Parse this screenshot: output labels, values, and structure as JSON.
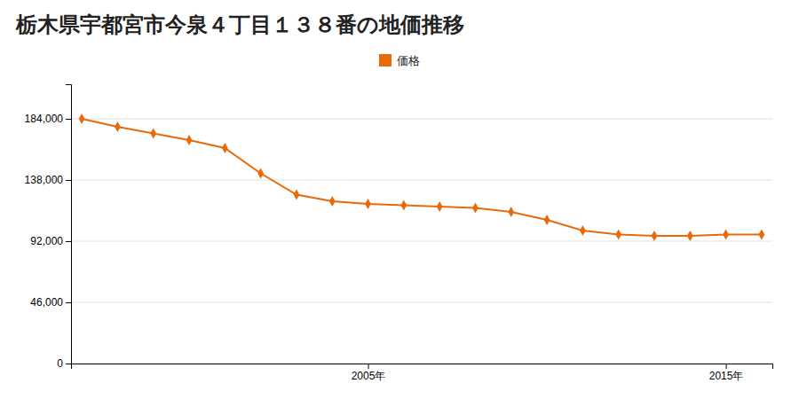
{
  "chart_data": {
    "type": "line",
    "title": "栃木県宇都宮市今泉４丁目１３８番の地価推移",
    "x": [
      1997,
      1998,
      1999,
      2000,
      2001,
      2002,
      2003,
      2004,
      2005,
      2006,
      2007,
      2008,
      2009,
      2010,
      2011,
      2012,
      2013,
      2014,
      2015,
      2016
    ],
    "xlim": [
      1996.7,
      2016.3
    ],
    "xticks": [
      {
        "value": 2005,
        "label": "2005年"
      },
      {
        "value": 2015,
        "label": "2015年"
      }
    ],
    "ylim": [
      0,
      210000
    ],
    "yticks": [
      0,
      {
        "value": 46000,
        "label": "46,000"
      },
      {
        "value": 92000,
        "label": "92,000"
      },
      {
        "value": 138000,
        "label": "138,000"
      },
      {
        "value": 184000,
        "label": "184,000"
      }
    ],
    "grid": true,
    "legend": "top",
    "series": [
      {
        "name": "価格",
        "color": "#e86a0a",
        "marker": "diamond",
        "values": [
          184000,
          178000,
          173000,
          168000,
          162000,
          143000,
          127000,
          122000,
          120000,
          119000,
          118000,
          117000,
          114000,
          108000,
          100000,
          97000,
          96000,
          96000,
          97000,
          97000
        ]
      }
    ]
  }
}
